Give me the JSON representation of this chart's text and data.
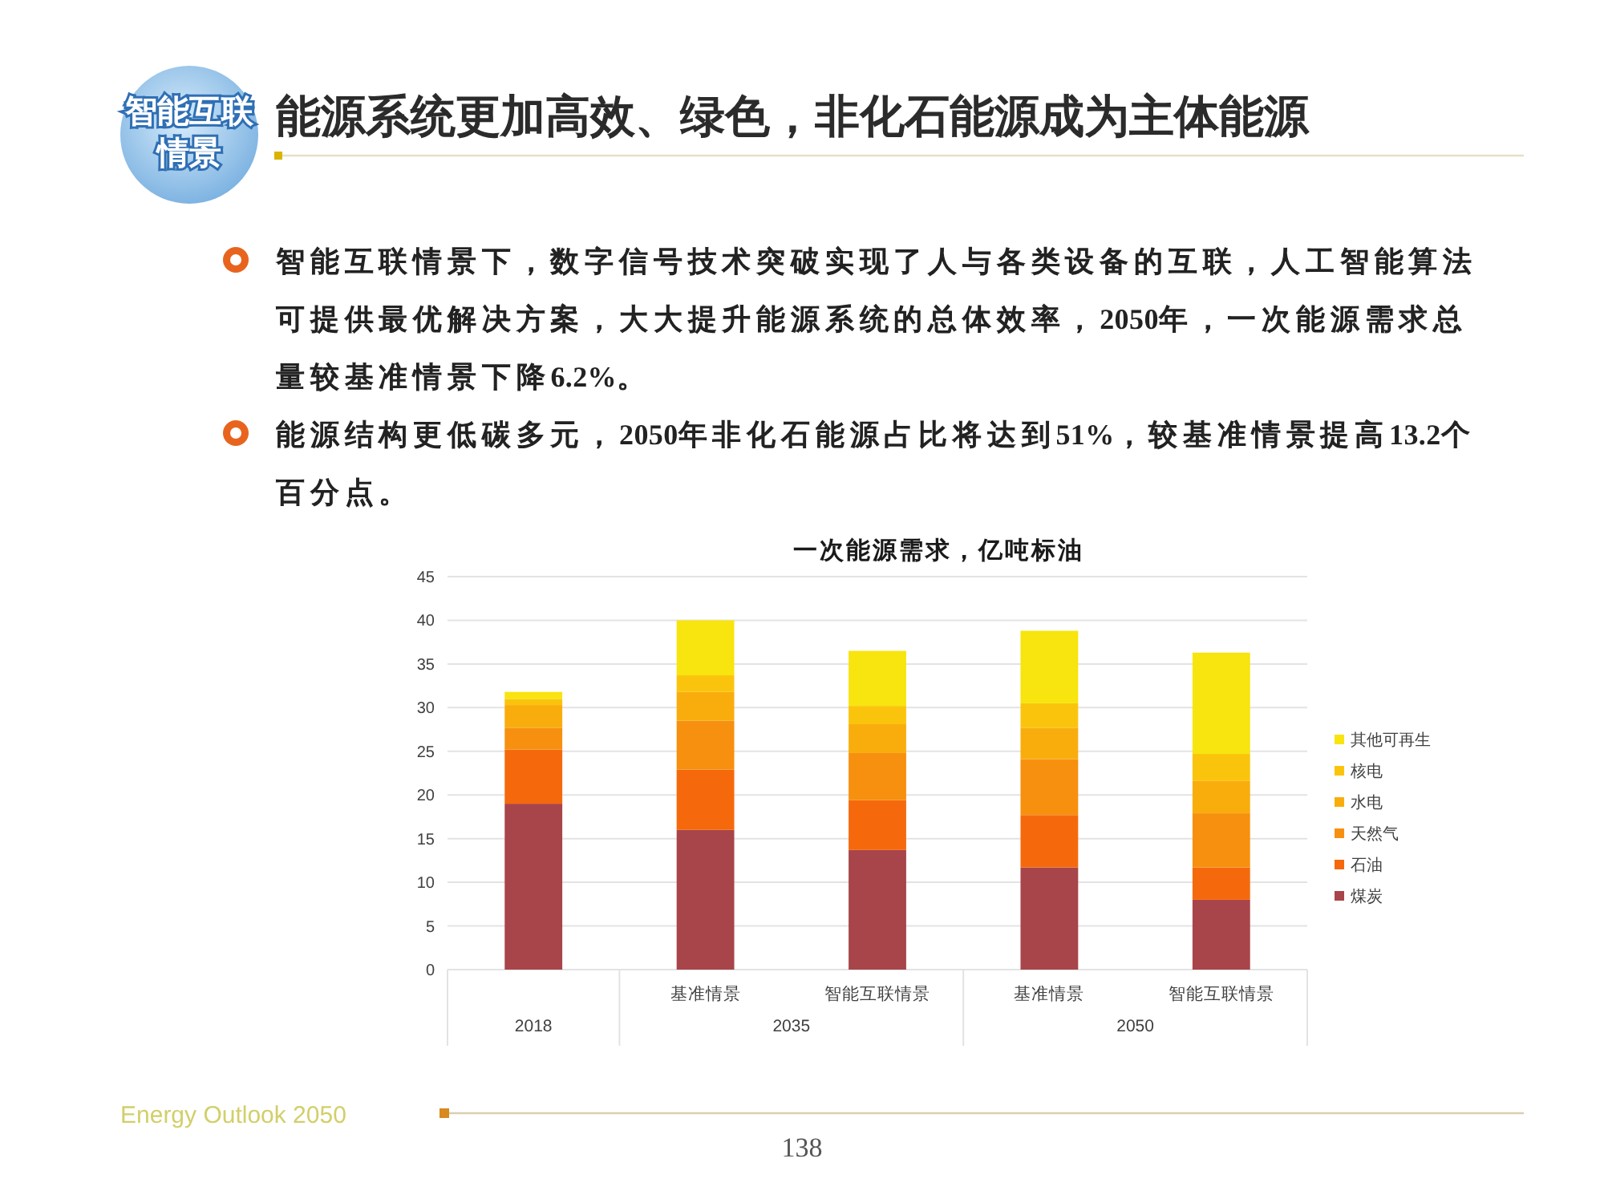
{
  "chart_data": {
    "type": "bar",
    "title": "能源系统更加高效、绿色，非化石能源成为主体能源",
    "subtitle": "一次能源需求，亿吨标油",
    "categories": [
      null,
      "基准情景",
      "智能互联情景",
      "基准情景",
      "智能互联情景"
    ],
    "stacked": true,
    "series": [
      {
        "name": "煤炭",
        "color": "#a8454a",
        "values": [
          19.0,
          16.0,
          13.7,
          11.7,
          8.0
        ]
      },
      {
        "name": "石油",
        "color": "#f5690c",
        "values": [
          6.2,
          6.9,
          5.7,
          6.0,
          3.7
        ]
      },
      {
        "name": "天然气",
        "color": "#f7900f",
        "values": [
          2.5,
          5.6,
          5.4,
          6.4,
          6.2
        ]
      },
      {
        "name": "水电",
        "color": "#f9ad0d",
        "values": [
          2.6,
          3.3,
          3.3,
          3.6,
          3.7
        ]
      },
      {
        "name": "核电",
        "color": "#fbc40c",
        "values": [
          0.7,
          1.9,
          2.1,
          2.8,
          3.1
        ]
      },
      {
        "name": "其他可再生",
        "color": "#f8e40e",
        "values": [
          0.8,
          6.3,
          6.3,
          8.3,
          11.6
        ]
      }
    ],
    "ylim": [
      0,
      45
    ],
    "yticks": [
      0,
      5,
      10,
      15,
      20,
      25,
      30,
      35,
      40,
      45
    ],
    "grid": "y",
    "legend": "right",
    "annotations": [
      "智能互联情景",
      "智能互联情景下，数字信号技术突破实现了人与各类设备的互联，人工智能算法可提供最优解决方案，大大提升能源系统的总体效率，2050年，一次能源需求总量较基准情景下降6.2%。",
      "能源结构更低碳多元，2050年非化石能源占比将达到51%，较基准情景提高13.2个百分点。",
      "2018",
      "2035",
      "2050",
      "Energy Outlook 2050",
      "138"
    ]
  }
}
